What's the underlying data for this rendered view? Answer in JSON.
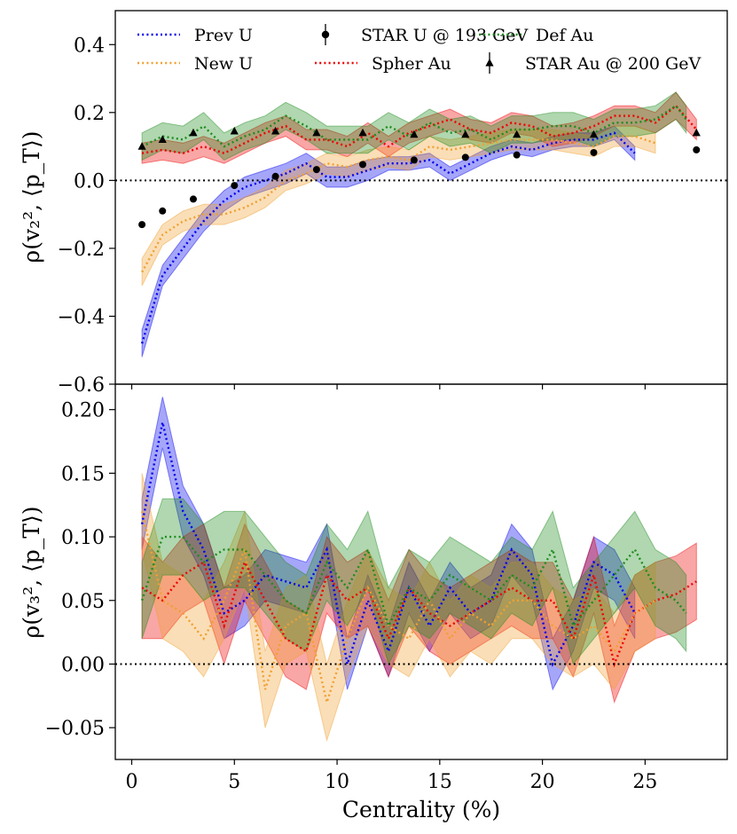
{
  "chart_data": [
    {
      "type": "line",
      "panel": "top",
      "ylabel": "ρ(v₂², ⟨p_T⟩)",
      "xlabel": "",
      "xlim": [
        -0.8,
        29.0
      ],
      "ylim": [
        -0.6,
        0.5
      ],
      "xticks": [
        0,
        5,
        10,
        15,
        20,
        25
      ],
      "yticks": [
        -0.6,
        -0.4,
        -0.2,
        0.0,
        0.2,
        0.4
      ],
      "ytick_labels": [
        "−0.6",
        "−0.4",
        "−0.2",
        "0.0",
        "0.2",
        "0.4"
      ],
      "zero_line": true,
      "series": [
        {
          "name": "Prev U",
          "color": "#0000ee",
          "x": [
            0.5,
            1.5,
            2.5,
            3.5,
            4.5,
            5.5,
            6.5,
            7.5,
            8.5,
            9.5,
            10.5,
            11.5,
            12.5,
            13.5,
            14.5,
            15.5,
            16.5,
            17.5,
            18.5,
            19.5,
            20.5,
            21.5,
            22.5,
            23.5,
            24.5
          ],
          "y": [
            -0.48,
            -0.28,
            -0.2,
            -0.12,
            -0.06,
            -0.02,
            0.0,
            0.02,
            0.05,
            0.01,
            0.01,
            0.03,
            0.05,
            0.05,
            0.06,
            0.02,
            0.05,
            0.08,
            0.1,
            0.09,
            0.11,
            0.12,
            0.12,
            0.14,
            0.08
          ],
          "err": [
            0.04,
            0.03,
            0.03,
            0.03,
            0.03,
            0.03,
            0.03,
            0.03,
            0.03,
            0.03,
            0.03,
            0.03,
            0.02,
            0.02,
            0.02,
            0.02,
            0.02,
            0.02,
            0.02,
            0.02,
            0.02,
            0.02,
            0.02,
            0.02,
            0.02
          ]
        },
        {
          "name": "Spher Au",
          "color": "#ee0000",
          "x": [
            0.5,
            1.5,
            2.5,
            3.5,
            4.5,
            5.5,
            6.5,
            7.5,
            8.5,
            9.5,
            10.5,
            11.5,
            12.5,
            13.5,
            14.5,
            15.5,
            16.5,
            17.5,
            18.5,
            19.5,
            20.5,
            21.5,
            22.5,
            23.5,
            24.5,
            25.5,
            26.5,
            27.5
          ],
          "y": [
            0.08,
            0.09,
            0.08,
            0.1,
            0.08,
            0.11,
            0.14,
            0.16,
            0.12,
            0.12,
            0.1,
            0.14,
            0.1,
            0.14,
            0.16,
            0.18,
            0.15,
            0.14,
            0.17,
            0.16,
            0.13,
            0.14,
            0.16,
            0.19,
            0.19,
            0.17,
            0.22,
            0.15
          ],
          "err": [
            0.03,
            0.03,
            0.03,
            0.03,
            0.03,
            0.03,
            0.03,
            0.03,
            0.03,
            0.03,
            0.03,
            0.03,
            0.03,
            0.03,
            0.03,
            0.03,
            0.03,
            0.03,
            0.03,
            0.03,
            0.03,
            0.03,
            0.03,
            0.03,
            0.03,
            0.03,
            0.04,
            0.03
          ]
        },
        {
          "name": "New U",
          "color": "#f0a030",
          "x": [
            0.5,
            1.5,
            2.5,
            3.5,
            4.5,
            5.5,
            6.5,
            7.5,
            8.5,
            9.5,
            10.5,
            11.5,
            12.5,
            13.5,
            14.5,
            15.5,
            16.5,
            17.5,
            18.5,
            19.5,
            20.5,
            21.5,
            22.5,
            23.5,
            24.5,
            25.5
          ],
          "y": [
            -0.27,
            -0.16,
            -0.12,
            -0.1,
            -0.1,
            -0.08,
            -0.05,
            0.0,
            0.02,
            0.05,
            0.04,
            0.06,
            0.07,
            0.06,
            0.1,
            0.09,
            0.1,
            0.11,
            0.12,
            0.12,
            0.12,
            0.11,
            0.1,
            0.13,
            0.13,
            0.11
          ],
          "err": [
            0.04,
            0.03,
            0.03,
            0.03,
            0.03,
            0.03,
            0.03,
            0.03,
            0.03,
            0.03,
            0.03,
            0.03,
            0.03,
            0.03,
            0.03,
            0.03,
            0.03,
            0.03,
            0.03,
            0.03,
            0.03,
            0.03,
            0.03,
            0.03,
            0.03,
            0.03
          ]
        },
        {
          "name": "Def Au",
          "color": "#1e8c1e",
          "x": [
            0.5,
            1.5,
            2.5,
            3.5,
            4.5,
            5.5,
            6.5,
            7.5,
            8.5,
            9.5,
            10.5,
            11.5,
            12.5,
            13.5,
            14.5,
            15.5,
            16.5,
            17.5,
            18.5,
            19.5,
            20.5,
            21.5,
            22.5,
            23.5,
            24.5,
            25.5,
            26.5,
            27.0
          ],
          "y": [
            0.1,
            0.13,
            0.12,
            0.16,
            0.1,
            0.13,
            0.15,
            0.19,
            0.16,
            0.12,
            0.12,
            0.12,
            0.16,
            0.13,
            0.17,
            0.14,
            0.15,
            0.12,
            0.15,
            0.15,
            0.16,
            0.16,
            0.14,
            0.17,
            0.17,
            0.18,
            0.22,
            0.18
          ],
          "err": [
            0.04,
            0.04,
            0.04,
            0.04,
            0.04,
            0.04,
            0.04,
            0.04,
            0.04,
            0.04,
            0.04,
            0.04,
            0.04,
            0.04,
            0.04,
            0.04,
            0.04,
            0.04,
            0.04,
            0.04,
            0.04,
            0.04,
            0.04,
            0.04,
            0.04,
            0.04,
            0.04,
            0.04
          ]
        }
      ],
      "points": [
        {
          "name": "STAR U @ 193 GeV",
          "marker": "circle",
          "x": [
            0.5,
            1.5,
            3.0,
            5.0,
            7.0,
            9.0,
            11.25,
            13.75,
            16.25,
            18.75,
            22.5,
            27.5
          ],
          "y": [
            -0.13,
            -0.09,
            -0.055,
            -0.015,
            0.012,
            0.032,
            0.047,
            0.06,
            0.068,
            0.075,
            0.082,
            0.09
          ]
        },
        {
          "name": "STAR Au @ 200 GeV",
          "marker": "triangle",
          "x": [
            0.5,
            1.5,
            3.0,
            5.0,
            7.0,
            9.0,
            11.25,
            13.75,
            16.25,
            18.75,
            22.5,
            27.5
          ],
          "y": [
            0.1,
            0.12,
            0.14,
            0.145,
            0.145,
            0.14,
            0.14,
            0.135,
            0.135,
            0.135,
            0.135,
            0.14
          ]
        }
      ],
      "legend": {
        "position": "top",
        "entries": [
          "Prev U",
          "New U",
          "STAR U @ 193 GeV",
          "Spher Au",
          "Def Au",
          "STAR Au @ 200 GeV"
        ]
      }
    },
    {
      "type": "line",
      "panel": "bottom",
      "ylabel": "ρ(v₃², ⟨p_T⟩)",
      "xlabel": "Centrality (%)",
      "xlim": [
        -0.8,
        29.0
      ],
      "ylim": [
        -0.075,
        0.22
      ],
      "xticks": [
        0,
        5,
        10,
        15,
        20,
        25
      ],
      "xtick_labels": [
        "0",
        "5",
        "10",
        "15",
        "20",
        "25"
      ],
      "yticks": [
        -0.05,
        0.0,
        0.05,
        0.1,
        0.15,
        0.2
      ],
      "ytick_labels": [
        "−0.05",
        "0.00",
        "0.05",
        "0.10",
        "0.15",
        "0.20"
      ],
      "zero_line": true,
      "series": [
        {
          "name": "Prev U",
          "color": "#0000ee",
          "x": [
            0.5,
            1.5,
            2.5,
            3.5,
            4.5,
            5.5,
            6.5,
            7.5,
            8.5,
            9.5,
            10.5,
            11.5,
            12.5,
            13.5,
            14.5,
            15.5,
            16.5,
            17.5,
            18.5,
            19.5,
            20.5,
            21.5,
            22.5,
            23.5,
            24.5
          ],
          "y": [
            0.11,
            0.19,
            0.12,
            0.09,
            0.04,
            0.05,
            0.07,
            0.065,
            0.06,
            0.09,
            0.0,
            0.05,
            0.01,
            0.06,
            0.03,
            0.06,
            0.04,
            0.05,
            0.09,
            0.07,
            0.0,
            0.03,
            0.08,
            0.07,
            0.04
          ],
          "err": [
            0.02,
            0.02,
            0.02,
            0.02,
            0.02,
            0.02,
            0.02,
            0.02,
            0.02,
            0.02,
            0.02,
            0.02,
            0.02,
            0.02,
            0.02,
            0.02,
            0.02,
            0.02,
            0.02,
            0.02,
            0.02,
            0.02,
            0.02,
            0.02,
            0.02
          ]
        },
        {
          "name": "Spher Au",
          "color": "#ee0000",
          "x": [
            0.5,
            1.5,
            2.5,
            3.5,
            4.5,
            5.5,
            6.5,
            7.5,
            8.5,
            9.5,
            10.5,
            11.5,
            12.5,
            13.5,
            14.5,
            15.5,
            16.5,
            17.5,
            18.5,
            19.5,
            20.5,
            21.5,
            22.5,
            23.5,
            24.5,
            25.5,
            26.5,
            27.5
          ],
          "y": [
            0.06,
            0.05,
            0.07,
            0.08,
            0.03,
            0.08,
            0.05,
            0.02,
            0.01,
            0.07,
            0.05,
            0.06,
            0.02,
            0.06,
            0.04,
            0.03,
            0.04,
            0.05,
            0.06,
            0.05,
            0.05,
            0.02,
            0.07,
            0.0,
            0.04,
            0.05,
            0.055,
            0.065
          ],
          "err": [
            0.04,
            0.03,
            0.03,
            0.03,
            0.03,
            0.03,
            0.03,
            0.03,
            0.03,
            0.03,
            0.03,
            0.03,
            0.03,
            0.03,
            0.03,
            0.03,
            0.03,
            0.03,
            0.03,
            0.03,
            0.03,
            0.03,
            0.03,
            0.03,
            0.03,
            0.03,
            0.03,
            0.03
          ]
        },
        {
          "name": "New U",
          "color": "#f0a030",
          "x": [
            0.5,
            1.5,
            2.5,
            3.5,
            4.5,
            5.5,
            6.5,
            7.5,
            8.5,
            9.5,
            10.5,
            11.5,
            12.5,
            13.5,
            14.5,
            15.5,
            16.5,
            17.5,
            18.5,
            19.5,
            20.5,
            21.5,
            22.5,
            23.5,
            24.5,
            25.5
          ],
          "y": [
            0.12,
            0.05,
            0.04,
            0.02,
            0.05,
            0.09,
            -0.02,
            0.03,
            0.04,
            -0.03,
            0.02,
            0.06,
            0.03,
            0.02,
            0.05,
            0.02,
            0.04,
            0.03,
            0.05,
            0.05,
            0.03,
            0.02,
            0.03,
            0.01,
            0.04,
            0.05
          ],
          "err": [
            0.03,
            0.03,
            0.03,
            0.03,
            0.03,
            0.03,
            0.03,
            0.03,
            0.03,
            0.03,
            0.03,
            0.03,
            0.03,
            0.03,
            0.03,
            0.03,
            0.03,
            0.03,
            0.03,
            0.03,
            0.03,
            0.03,
            0.03,
            0.03,
            0.03,
            0.03
          ]
        },
        {
          "name": "Def Au",
          "color": "#1e8c1e",
          "x": [
            0.5,
            1.5,
            2.5,
            3.5,
            4.5,
            5.5,
            6.5,
            7.5,
            8.5,
            9.5,
            10.5,
            11.5,
            12.5,
            13.5,
            14.5,
            15.5,
            16.5,
            17.5,
            18.5,
            19.5,
            20.5,
            21.5,
            22.5,
            23.5,
            24.5,
            25.5,
            26.5,
            27.0
          ],
          "y": [
            0.05,
            0.1,
            0.1,
            0.08,
            0.09,
            0.09,
            0.07,
            0.05,
            0.04,
            0.08,
            0.06,
            0.09,
            0.03,
            0.06,
            0.05,
            0.07,
            0.06,
            0.05,
            0.07,
            0.06,
            0.09,
            0.03,
            0.05,
            0.07,
            0.09,
            0.06,
            0.05,
            0.04
          ],
          "err": [
            0.03,
            0.03,
            0.03,
            0.03,
            0.03,
            0.03,
            0.03,
            0.03,
            0.03,
            0.03,
            0.03,
            0.03,
            0.03,
            0.03,
            0.03,
            0.03,
            0.03,
            0.03,
            0.03,
            0.03,
            0.03,
            0.03,
            0.03,
            0.03,
            0.03,
            0.03,
            0.03,
            0.03
          ]
        }
      ]
    }
  ]
}
